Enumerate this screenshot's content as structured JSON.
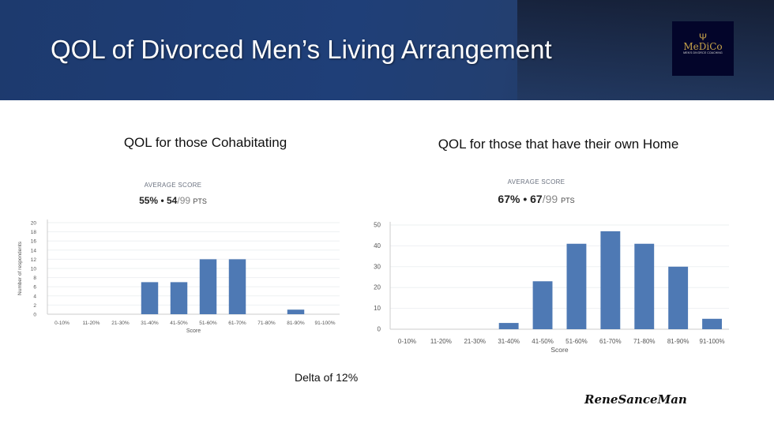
{
  "slide": {
    "title": "QOL of Divorced Men’s Living Arrangement",
    "logo": {
      "name": "MeDiCo",
      "tagline": "MEN'S DIVORCE COACHING"
    },
    "delta_text": "Delta of 12%",
    "signature": "ReneSanceMan"
  },
  "left": {
    "title": "QOL for those Cohabitating",
    "avg_label": "AVERAGE SCORE",
    "avg_pct": "55%",
    "avg_sep": "•",
    "avg_pts": "54",
    "avg_den": "/99",
    "avg_unit": "PTS"
  },
  "right": {
    "title": "QOL for those that have their own Home",
    "avg_label": "AVERAGE SCORE",
    "avg_pct": "67%",
    "avg_sep": "•",
    "avg_pts": "67",
    "avg_den": "/99",
    "avg_unit": "PTS"
  },
  "chart_data": [
    {
      "type": "bar",
      "categories": [
        "0-10%",
        "11-20%",
        "21-30%",
        "31-40%",
        "41-50%",
        "51-60%",
        "61-70%",
        "71-80%",
        "81-90%",
        "91-100%"
      ],
      "values": [
        0,
        0,
        0,
        7,
        7,
        12,
        12,
        0,
        1,
        0
      ],
      "xlabel": "Score",
      "ylabel": "Number of respondents",
      "ylim": [
        0,
        20
      ],
      "yticks": [
        0,
        2,
        4,
        6,
        8,
        10,
        12,
        14,
        16,
        18,
        20
      ],
      "grid": true,
      "color": "#4e79b4"
    },
    {
      "type": "bar",
      "categories": [
        "0-10%",
        "11-20%",
        "21-30%",
        "31-40%",
        "41-50%",
        "51-60%",
        "61-70%",
        "71-80%",
        "81-90%",
        "91-100%"
      ],
      "values": [
        0,
        0,
        0,
        3,
        23,
        41,
        47,
        41,
        30,
        5
      ],
      "xlabel": "Score",
      "ylabel": "",
      "ylim": [
        0,
        50
      ],
      "yticks": [
        0,
        10,
        20,
        30,
        40,
        50
      ],
      "grid": true,
      "color": "#4e79b4"
    }
  ]
}
